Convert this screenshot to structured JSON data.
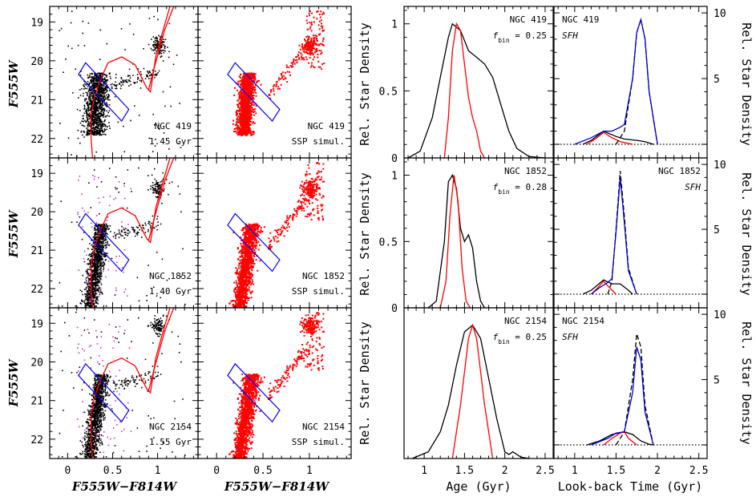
{
  "chart_data": [
    {
      "panel": "cmd-observed",
      "type": "scatter",
      "xlabel": "F555W−F814W",
      "ylabel": "F555W",
      "xlim": [
        -0.2,
        1.45
      ],
      "ylim": [
        22.5,
        18.6
      ],
      "xticks": [
        "0",
        "0.5",
        "1"
      ],
      "yticks": [
        "19",
        "20",
        "21",
        "22"
      ],
      "rows": [
        {
          "cluster": "NGC 419",
          "age_label": "1.45 Gyr"
        },
        {
          "cluster": "NGC 1852",
          "age_label": "1.40 Gyr"
        },
        {
          "cluster": "NGC 2154",
          "age_label": "1.55 Gyr"
        }
      ],
      "colors": {
        "stars": "#000000",
        "field": "#cc33cc",
        "isochrone": "#ff0000",
        "box": "#0000ff"
      }
    },
    {
      "panel": "cmd-simulated",
      "type": "scatter",
      "xlabel": "F555W−F814W",
      "xlim": [
        -0.2,
        1.45
      ],
      "ylim": [
        22.5,
        18.6
      ],
      "xticks": [
        "0",
        "0.5",
        "1"
      ],
      "rows": [
        {
          "cluster": "NGC 419",
          "label": "SSP simul."
        },
        {
          "cluster": "NGC 1852",
          "label": "SSP simul."
        },
        {
          "cluster": "NGC 2154",
          "label": "SSP simul."
        }
      ],
      "colors": {
        "stars": "#ff0000",
        "box": "#0000ff"
      }
    },
    {
      "panel": "age-distribution",
      "type": "line",
      "xlabel": "Age (Gyr)",
      "ylabel": "Rel. Star Density",
      "xlim": [
        0.75,
        2.6
      ],
      "xticks": [
        "1",
        "1.5",
        "2",
        "2.5"
      ],
      "rows": [
        {
          "cluster": "NGC 419",
          "fbin_label": "f",
          "fbin_sub": "bin",
          "fbin_value": "= 0.25",
          "yticks": [
            "0",
            "0.5",
            "1"
          ],
          "ylim": [
            0,
            1.1
          ],
          "series": [
            {
              "color": "#000000",
              "x": [
                0.8,
                0.95,
                1.1,
                1.2,
                1.3,
                1.35,
                1.45,
                1.55,
                1.65,
                1.75,
                1.85,
                1.95,
                2.05,
                2.15,
                2.3,
                2.5
              ],
              "y": [
                0,
                0.05,
                0.3,
                0.6,
                0.9,
                1.0,
                0.95,
                0.8,
                0.75,
                0.7,
                0.6,
                0.4,
                0.2,
                0.07,
                0.01,
                0
              ]
            },
            {
              "color": "#ff0000",
              "x": [
                1.25,
                1.3,
                1.35,
                1.4,
                1.45,
                1.5,
                1.55,
                1.6,
                1.65,
                1.7,
                1.75
              ],
              "y": [
                0,
                0.3,
                0.8,
                1.0,
                0.95,
                0.7,
                0.45,
                0.3,
                0.2,
                0.05,
                0
              ]
            }
          ]
        },
        {
          "cluster": "NGC 1852",
          "fbin_label": "f",
          "fbin_sub": "bin",
          "fbin_value": "= 0.28",
          "yticks": [
            "0",
            "0.5",
            "1"
          ],
          "ylim": [
            0,
            1.1
          ],
          "series": [
            {
              "color": "#000000",
              "x": [
                1.05,
                1.15,
                1.25,
                1.3,
                1.35,
                1.4,
                1.45,
                1.5,
                1.55,
                1.6,
                1.65,
                1.7,
                1.75
              ],
              "y": [
                0,
                0.05,
                0.5,
                0.95,
                1.0,
                0.9,
                0.6,
                0.5,
                0.55,
                0.45,
                0.2,
                0.05,
                0
              ]
            },
            {
              "color": "#ff0000",
              "x": [
                1.2,
                1.27,
                1.32,
                1.37,
                1.42,
                1.47,
                1.52,
                1.57
              ],
              "y": [
                0,
                0.2,
                0.7,
                1.0,
                0.8,
                0.3,
                0.05,
                0
              ]
            }
          ]
        },
        {
          "cluster": "NGC 2154",
          "fbin_label": "f",
          "fbin_sub": "bin",
          "fbin_value": "= 0.25",
          "yticks": [],
          "ylim": [
            0,
            1.1
          ],
          "series": [
            {
              "color": "#000000",
              "x": [
                0.85,
                1.05,
                1.2,
                1.3,
                1.4,
                1.5,
                1.6,
                1.7,
                1.8,
                1.9,
                2.0,
                2.05,
                2.1,
                2.2,
                2.3
              ],
              "y": [
                0,
                0.05,
                0.2,
                0.4,
                0.7,
                0.95,
                1.0,
                0.9,
                0.6,
                0.3,
                0.05,
                0.03,
                0.05,
                0.01,
                0
              ]
            },
            {
              "color": "#ff0000",
              "x": [
                1.35,
                1.45,
                1.55,
                1.6,
                1.65,
                1.75,
                1.85
              ],
              "y": [
                0,
                0.4,
                0.9,
                1.0,
                0.9,
                0.4,
                0
              ]
            }
          ]
        }
      ]
    },
    {
      "panel": "star-formation-history",
      "type": "line",
      "xlabel": "Look-back Time (Gyr)",
      "ylabel": "Rel. Star Density",
      "xlim": [
        0.75,
        2.6
      ],
      "ylim": [
        -1,
        11
      ],
      "xticks": [
        "1",
        "1.5",
        "2",
        "2.5"
      ],
      "yticks": [
        "5",
        "10"
      ],
      "background_level": 1.0,
      "rows": [
        {
          "cluster": "NGC 419",
          "sfh_label": "SFH",
          "series": [
            {
              "style": "solid",
              "color": "#000000",
              "x": [
                1.1,
                1.2,
                1.35,
                1.5,
                1.6,
                1.75,
                1.85,
                1.95
              ],
              "y": [
                0,
                0.3,
                1.0,
                0.6,
                0.4,
                0.3,
                0.2,
                0
              ]
            },
            {
              "style": "solid",
              "color": "#ff0000",
              "x": [
                1.15,
                1.25,
                1.35,
                1.45,
                1.55,
                1.7
              ],
              "y": [
                0,
                0.4,
                0.9,
                0.5,
                0.2,
                0
              ]
            },
            {
              "style": "dashed",
              "color": "#000000",
              "x": [
                1.5,
                1.6,
                1.7,
                1.75,
                1.8,
                1.85,
                1.9,
                2.0
              ],
              "y": [
                0,
                1.0,
                5.0,
                8.5,
                9.5,
                8.0,
                4.0,
                0
              ]
            },
            {
              "style": "solid",
              "color": "#0000cc",
              "x": [
                1.0,
                1.2,
                1.35,
                1.45,
                1.55,
                1.6,
                1.7,
                1.75,
                1.8,
                1.85,
                1.9,
                2.0
              ],
              "y": [
                0,
                0.5,
                1.0,
                1.0,
                1.3,
                1.5,
                5.0,
                8.5,
                9.5,
                8.0,
                4.0,
                0
              ]
            }
          ]
        },
        {
          "cluster": "NGC 1852",
          "sfh_label": "SFH",
          "series": [
            {
              "style": "solid",
              "color": "#000000",
              "x": [
                1.1,
                1.2,
                1.35,
                1.45,
                1.55,
                1.65,
                1.7
              ],
              "y": [
                0,
                0.3,
                1.1,
                0.8,
                0.8,
                0.3,
                0
              ]
            },
            {
              "style": "solid",
              "color": "#ff0000",
              "x": [
                1.2,
                1.28,
                1.35,
                1.42,
                1.5
              ],
              "y": [
                0,
                0.5,
                1.0,
                0.5,
                0
              ]
            },
            {
              "style": "dashed",
              "color": "#000000",
              "x": [
                1.4,
                1.45,
                1.5,
                1.55,
                1.6,
                1.65,
                1.75
              ],
              "y": [
                0,
                1.0,
                5.0,
                9.5,
                6.0,
                2.0,
                0
              ]
            },
            {
              "style": "solid",
              "color": "#0000cc",
              "x": [
                1.2,
                1.3,
                1.4,
                1.45,
                1.5,
                1.55,
                1.6,
                1.65,
                1.75
              ],
              "y": [
                0,
                0.5,
                0.9,
                1.2,
                4.8,
                9.0,
                5.5,
                1.8,
                0
              ]
            }
          ]
        },
        {
          "cluster": "NGC 2154",
          "sfh_label": "SFH",
          "series": [
            {
              "style": "solid",
              "color": "#000000",
              "x": [
                1.15,
                1.3,
                1.45,
                1.6,
                1.7,
                1.8,
                1.9,
                1.95
              ],
              "y": [
                0,
                0.3,
                0.8,
                1.0,
                0.8,
                0.3,
                0.05,
                0
              ]
            },
            {
              "style": "solid",
              "color": "#ff0000",
              "x": [
                1.35,
                1.45,
                1.55,
                1.6,
                1.65,
                1.75
              ],
              "y": [
                0,
                0.5,
                0.9,
                1.0,
                0.5,
                0
              ]
            },
            {
              "style": "dashed",
              "color": "#000000",
              "x": [
                1.5,
                1.6,
                1.7,
                1.75,
                1.8,
                1.85,
                1.95
              ],
              "y": [
                0,
                1.0,
                5.0,
                8.5,
                7.5,
                3.0,
                0
              ]
            },
            {
              "style": "solid",
              "color": "#0000cc",
              "x": [
                1.2,
                1.4,
                1.5,
                1.6,
                1.7,
                1.75,
                1.8,
                1.85,
                1.95
              ],
              "y": [
                0,
                0.5,
                0.9,
                1.0,
                4.0,
                7.5,
                6.5,
                2.5,
                0
              ]
            }
          ]
        }
      ]
    }
  ]
}
